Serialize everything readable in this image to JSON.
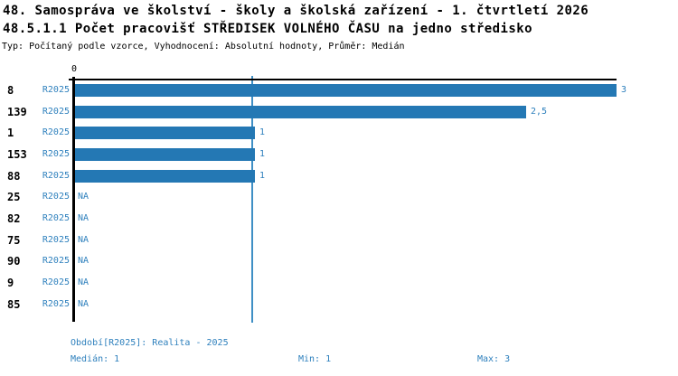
{
  "header": {
    "title": "48. Samospráva ve školství - školy a školská zařízení - 1. čtvrtletí 2026",
    "subtitle": "48.5.1.1 Počet pracovišť STŘEDISEK VOLNÉHO ČASU na jedno středisko",
    "meta": "Typ: Počítaný podle vzorce, Vyhodnocení: Absolutní hodnoty, Průměr: Medián"
  },
  "chart": {
    "zero_label": "0",
    "rows": [
      {
        "id": "8",
        "period": "R2025",
        "value": 3,
        "value_label": "3"
      },
      {
        "id": "139",
        "period": "R2025",
        "value": 2.5,
        "value_label": "2,5"
      },
      {
        "id": "1",
        "period": "R2025",
        "value": 1,
        "value_label": "1"
      },
      {
        "id": "153",
        "period": "R2025",
        "value": 1,
        "value_label": "1"
      },
      {
        "id": "88",
        "period": "R2025",
        "value": 1,
        "value_label": "1"
      },
      {
        "id": "25",
        "period": "R2025",
        "value": null,
        "value_label": "NA"
      },
      {
        "id": "82",
        "period": "R2025",
        "value": null,
        "value_label": "NA"
      },
      {
        "id": "75",
        "period": "R2025",
        "value": null,
        "value_label": "NA"
      },
      {
        "id": "90",
        "period": "R2025",
        "value": null,
        "value_label": "NA"
      },
      {
        "id": "9",
        "period": "R2025",
        "value": null,
        "value_label": "NA"
      },
      {
        "id": "85",
        "period": "R2025",
        "value": null,
        "value_label": "NA"
      }
    ]
  },
  "footer": {
    "period": "Období[R2025]: Realita - 2025",
    "median": "Medián: 1",
    "min": "Min: 1",
    "max": "Max: 3"
  },
  "colors": {
    "bar": "#2478b4",
    "blue_text": "#2e80bd",
    "gridline": "#3f8fc5"
  },
  "chart_data": {
    "type": "bar",
    "orientation": "horizontal",
    "title": "48.5.1.1 Počet pracovišť STŘEDISEK VOLNÉHO ČASU na jedno středisko",
    "subtitle": "Typ: Počítaný podle vzorce, Vyhodnocení: Absolutní hodnoty, Průměr: Medián",
    "categories": [
      "8",
      "139",
      "1",
      "153",
      "88",
      "25",
      "82",
      "75",
      "90",
      "9",
      "85"
    ],
    "series": [
      {
        "name": "R2025",
        "values": [
          3,
          2.5,
          1,
          1,
          1,
          null,
          null,
          null,
          null,
          null,
          null
        ]
      }
    ],
    "value_labels": [
      "3",
      "2,5",
      "1",
      "1",
      "1",
      "NA",
      "NA",
      "NA",
      "NA",
      "NA",
      "NA"
    ],
    "xlim": [
      0,
      3
    ],
    "grid": {
      "vertical_line_at": 1,
      "meaning": "Medián"
    },
    "stats": {
      "median": 1,
      "min": 1,
      "max": 3
    },
    "period_legend": "Období[R2025]: Realita - 2025"
  }
}
